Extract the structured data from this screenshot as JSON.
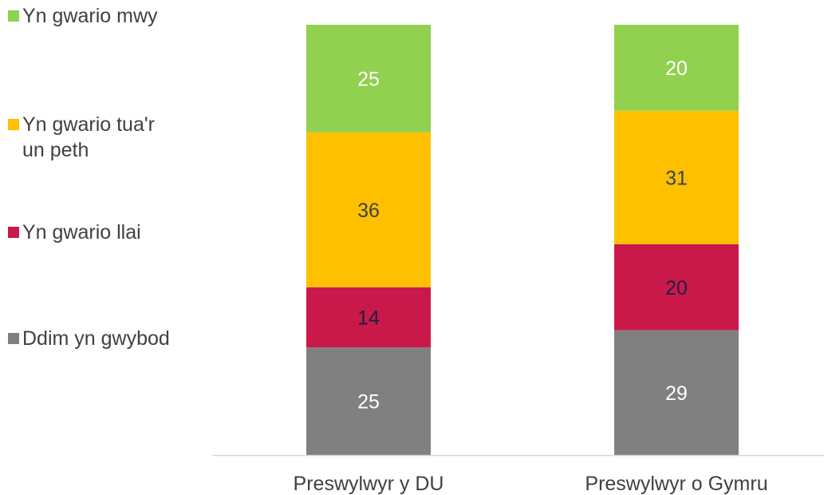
{
  "chart_data": {
    "type": "bar",
    "stacked": true,
    "percent": true,
    "categories": [
      "Preswylwyr y DU",
      "Preswylwyr o Gymru"
    ],
    "series": [
      {
        "name": "Ddim yn gwybod",
        "values": [
          25,
          29
        ],
        "color": "#808080",
        "label_color": "#ffffff"
      },
      {
        "name": "Yn gwario llai",
        "values": [
          14,
          20
        ],
        "color": "#c8194a",
        "label_color": "#1f1f3f"
      },
      {
        "name": "Yn gwario tua'r un peth",
        "values": [
          36,
          31
        ],
        "color": "#ffc000",
        "label_color": "#404040"
      },
      {
        "name": "Yn gwario mwy",
        "values": [
          25,
          20
        ],
        "color": "#92d050",
        "label_color": "#ffffff"
      }
    ],
    "legend": [
      {
        "label": "Yn gwario mwy",
        "color": "#92d050"
      },
      {
        "label": "Yn gwario tua'r\nun peth",
        "color": "#ffc000"
      },
      {
        "label": "Yn gwario llai",
        "color": "#c8194a"
      },
      {
        "label": "Ddim yn gwybod",
        "color": "#808080"
      }
    ],
    "legend_position": "left",
    "ylim": [
      0,
      100
    ],
    "grid": false,
    "axis_color": "#d9d9d9",
    "tick_label_color": "#404040"
  }
}
